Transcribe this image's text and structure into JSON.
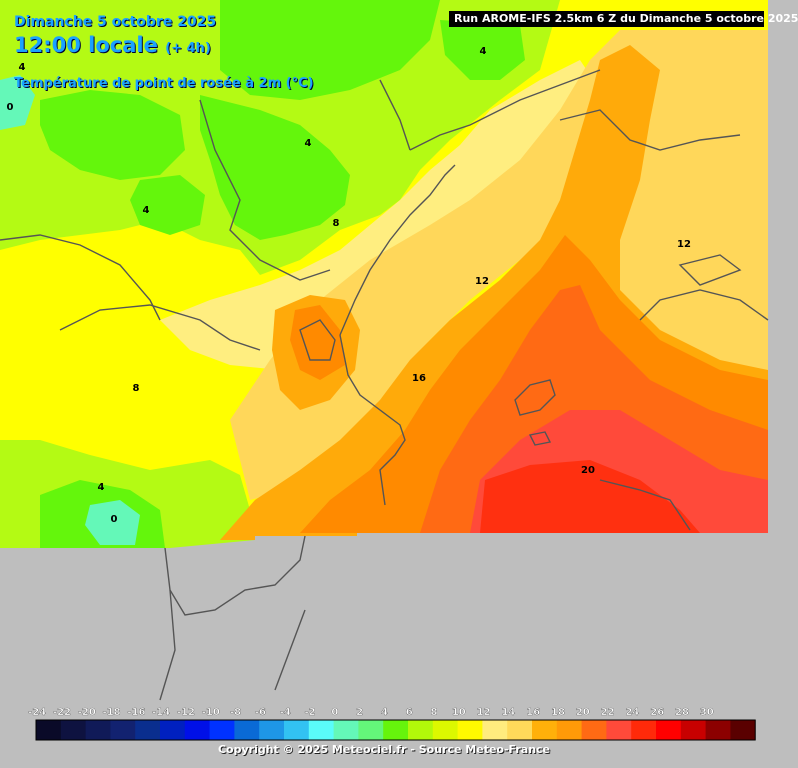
{
  "header": {
    "date": "Dimanche 5 octobre 2025",
    "time": "12:00 locale",
    "time_offset": "(+ 4h)",
    "parameter": "Température de point de rosée à 2m (°C)",
    "run": "Run AROME-IFS 2.5km 6 Z du Dimanche 5 octobre 2025"
  },
  "contour_labels": [
    "4",
    "4",
    "4",
    "4",
    "0",
    "8",
    "8",
    "12",
    "12",
    "16",
    "20",
    "4",
    "0"
  ],
  "scale": {
    "labels": [
      "-24",
      "-22",
      "-20",
      "-18",
      "-16",
      "-14",
      "-12",
      "-10",
      "-8",
      "-6",
      "-4",
      "-2",
      "0",
      "2",
      "4",
      "6",
      "8",
      "10",
      "12",
      "14",
      "16",
      "18",
      "20",
      "22",
      "24",
      "26",
      "28",
      "30"
    ],
    "colors": [
      "#0a0a28",
      "#0e1240",
      "#101a58",
      "#122270",
      "#0a2e8e",
      "#0020c0",
      "#0010e8",
      "#0032ff",
      "#0a6ad6",
      "#1e96e6",
      "#32c2f2",
      "#5afcfa",
      "#64f8b8",
      "#64f67a",
      "#66f40c",
      "#b2f80a",
      "#dcf800",
      "#fffa00",
      "#ffec7e",
      "#ffda5a",
      "#ffb00a",
      "#ff9a08",
      "#ff6a14",
      "#ff4a3a",
      "#ff2a0a",
      "#ff0000",
      "#c80000",
      "#8c0000",
      "#5a0000"
    ]
  },
  "copyright": "Copyright © 2025 Meteociel.fr - Source Meteo-France"
}
